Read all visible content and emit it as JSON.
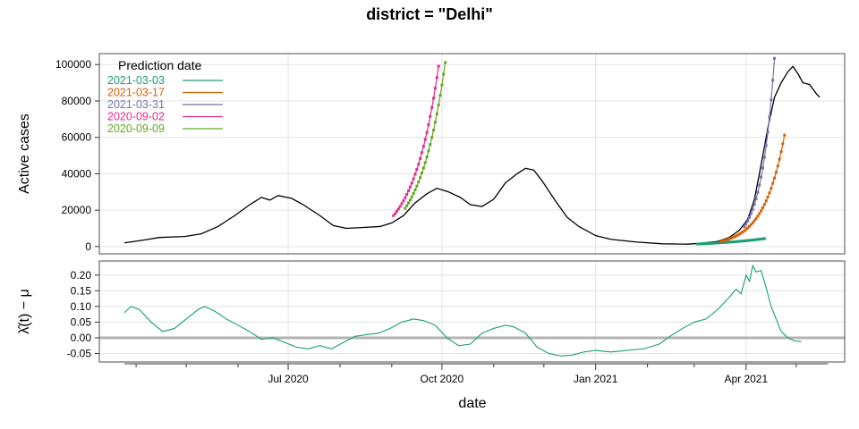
{
  "chart_data": {
    "type": "line",
    "title": "district = \"Delhi\"",
    "xlabel": "date",
    "x_ticks": [
      "Jul 2020",
      "Oct 2020",
      "Jan 2021",
      "Apr 2021"
    ],
    "x_tick_dates": [
      "2020-07-01",
      "2020-10-01",
      "2021-01-01",
      "2021-04-01"
    ],
    "xlim": [
      "2020-03-10",
      "2021-05-30"
    ],
    "grid": true,
    "panels": [
      {
        "name": "active_cases",
        "ylabel": "Active cases",
        "ylim": [
          -4000,
          106000
        ],
        "y_ticks": [
          0,
          20000,
          40000,
          60000,
          80000,
          100000
        ],
        "y_tick_labels": [
          "0",
          "20000",
          "40000",
          "60000",
          "80000",
          "100000"
        ],
        "legend": {
          "title": "Prediction date",
          "placement": "top-left",
          "entries": [
            {
              "label": "2021-03-03",
              "color": "#1b9e77"
            },
            {
              "label": "2021-03-17",
              "color": "#d95f02"
            },
            {
              "label": "2021-03-31",
              "color": "#7570b3"
            },
            {
              "label": "2020-09-02",
              "color": "#e7298a"
            },
            {
              "label": "2020-09-09",
              "color": "#66a61e"
            }
          ]
        },
        "observed": {
          "color": "#000000",
          "points": [
            [
              "2020-03-25",
              2000
            ],
            [
              "2020-04-05",
              3500
            ],
            [
              "2020-04-15",
              5000
            ],
            [
              "2020-04-30",
              5500
            ],
            [
              "2020-05-10",
              7000
            ],
            [
              "2020-05-20",
              11000
            ],
            [
              "2020-05-30",
              17000
            ],
            [
              "2020-06-08",
              23000
            ],
            [
              "2020-06-15",
              27000
            ],
            [
              "2020-06-20",
              25500
            ],
            [
              "2020-06-25",
              28000
            ],
            [
              "2020-07-03",
              26500
            ],
            [
              "2020-07-10",
              23000
            ],
            [
              "2020-07-20",
              17000
            ],
            [
              "2020-07-28",
              11500
            ],
            [
              "2020-08-05",
              10000
            ],
            [
              "2020-08-15",
              10500
            ],
            [
              "2020-08-25",
              11000
            ],
            [
              "2020-09-01",
              13000
            ],
            [
              "2020-09-08",
              17000
            ],
            [
              "2020-09-15",
              24000
            ],
            [
              "2020-09-22",
              29000
            ],
            [
              "2020-09-28",
              32000
            ],
            [
              "2020-10-05",
              30000
            ],
            [
              "2020-10-12",
              27000
            ],
            [
              "2020-10-18",
              23000
            ],
            [
              "2020-10-25",
              22000
            ],
            [
              "2020-11-01",
              26000
            ],
            [
              "2020-11-08",
              35000
            ],
            [
              "2020-11-15",
              40000
            ],
            [
              "2020-11-20",
              43000
            ],
            [
              "2020-11-25",
              42000
            ],
            [
              "2020-11-30",
              36000
            ],
            [
              "2020-12-08",
              25000
            ],
            [
              "2020-12-15",
              16000
            ],
            [
              "2020-12-22",
              11000
            ],
            [
              "2021-01-01",
              6000
            ],
            [
              "2021-01-10",
              4000
            ],
            [
              "2021-01-25",
              2500
            ],
            [
              "2021-02-10",
              1500
            ],
            [
              "2021-02-25",
              1300
            ],
            [
              "2021-03-05",
              1800
            ],
            [
              "2021-03-15",
              2800
            ],
            [
              "2021-03-22",
              5000
            ],
            [
              "2021-03-28",
              9000
            ],
            [
              "2021-04-02",
              15000
            ],
            [
              "2021-04-06",
              26000
            ],
            [
              "2021-04-10",
              45000
            ],
            [
              "2021-04-14",
              65000
            ],
            [
              "2021-04-18",
              82000
            ],
            [
              "2021-04-22",
              90000
            ],
            [
              "2021-04-26",
              96000
            ],
            [
              "2021-04-29",
              99000
            ],
            [
              "2021-05-02",
              95000
            ],
            [
              "2021-05-05",
              90000
            ],
            [
              "2021-05-09",
              89000
            ],
            [
              "2021-05-13",
              84000
            ],
            [
              "2021-05-15",
              82000
            ]
          ]
        },
        "predictions": [
          {
            "label": "2020-09-02",
            "color": "#e7298a",
            "start": "2020-09-02",
            "start_value": 17000,
            "daily_growth": 0.0653,
            "days": 27
          },
          {
            "label": "2020-09-09",
            "color": "#66a61e",
            "start": "2020-09-09",
            "start_value": 21000,
            "daily_growth": 0.0655,
            "days": 24
          },
          {
            "label": "2021-03-03",
            "color": "#1b9e77",
            "start": "2021-03-03",
            "start_value": 1400,
            "daily_growth": 0.0285,
            "days": 40
          },
          {
            "label": "2021-03-17",
            "color": "#d95f02",
            "start": "2021-03-17",
            "start_value": 2800,
            "daily_growth": 0.0812,
            "days": 38
          },
          {
            "label": "2021-03-31",
            "color": "#7570b3",
            "start": "2021-03-31",
            "start_value": 11000,
            "daily_growth": 0.1245,
            "days": 18
          }
        ]
      },
      {
        "name": "lambda_minus_mu",
        "ylabel": "λ̂(t) − μ",
        "ylim": [
          -0.077,
          0.245
        ],
        "y_ticks": [
          -0.05,
          0,
          0.05,
          0.1,
          0.15,
          0.2
        ],
        "y_tick_labels": [
          "-0.05",
          "0.00",
          "0.05",
          "0.10",
          "0.15",
          "0.20"
        ],
        "reference_line": {
          "y": 0,
          "color": "#b3b3b3"
        },
        "series": {
          "color": "#1b9e77",
          "points": [
            [
              "2020-03-25",
              0.08
            ],
            [
              "2020-03-29",
              0.1
            ],
            [
              "2020-04-03",
              0.09
            ],
            [
              "2020-04-10",
              0.05
            ],
            [
              "2020-04-17",
              0.02
            ],
            [
              "2020-04-24",
              0.03
            ],
            [
              "2020-05-01",
              0.06
            ],
            [
              "2020-05-08",
              0.09
            ],
            [
              "2020-05-12",
              0.1
            ],
            [
              "2020-05-18",
              0.085
            ],
            [
              "2020-05-25",
              0.06
            ],
            [
              "2020-06-01",
              0.04
            ],
            [
              "2020-06-08",
              0.02
            ],
            [
              "2020-06-15",
              -0.005
            ],
            [
              "2020-06-22",
              0.0
            ],
            [
              "2020-06-29",
              -0.015
            ],
            [
              "2020-07-06",
              -0.03
            ],
            [
              "2020-07-13",
              -0.035
            ],
            [
              "2020-07-20",
              -0.025
            ],
            [
              "2020-07-27",
              -0.035
            ],
            [
              "2020-08-03",
              -0.015
            ],
            [
              "2020-08-10",
              0.005
            ],
            [
              "2020-08-17",
              0.01
            ],
            [
              "2020-08-24",
              0.015
            ],
            [
              "2020-08-31",
              0.03
            ],
            [
              "2020-09-07",
              0.05
            ],
            [
              "2020-09-14",
              0.06
            ],
            [
              "2020-09-20",
              0.055
            ],
            [
              "2020-09-27",
              0.04
            ],
            [
              "2020-10-04",
              0.0
            ],
            [
              "2020-10-11",
              -0.025
            ],
            [
              "2020-10-18",
              -0.02
            ],
            [
              "2020-10-25",
              0.015
            ],
            [
              "2020-11-01",
              0.03
            ],
            [
              "2020-11-08",
              0.04
            ],
            [
              "2020-11-13",
              0.035
            ],
            [
              "2020-11-20",
              0.015
            ],
            [
              "2020-11-27",
              -0.03
            ],
            [
              "2020-12-04",
              -0.05
            ],
            [
              "2020-12-11",
              -0.058
            ],
            [
              "2020-12-18",
              -0.055
            ],
            [
              "2020-12-25",
              -0.045
            ],
            [
              "2021-01-01",
              -0.04
            ],
            [
              "2021-01-10",
              -0.045
            ],
            [
              "2021-01-20",
              -0.04
            ],
            [
              "2021-01-30",
              -0.035
            ],
            [
              "2021-02-08",
              -0.02
            ],
            [
              "2021-02-16",
              0.01
            ],
            [
              "2021-02-22",
              0.03
            ],
            [
              "2021-03-01",
              0.05
            ],
            [
              "2021-03-08",
              0.06
            ],
            [
              "2021-03-15",
              0.09
            ],
            [
              "2021-03-22",
              0.13
            ],
            [
              "2021-03-26",
              0.155
            ],
            [
              "2021-03-29",
              0.14
            ],
            [
              "2021-04-01",
              0.2
            ],
            [
              "2021-04-03",
              0.18
            ],
            [
              "2021-04-05",
              0.23
            ],
            [
              "2021-04-07",
              0.21
            ],
            [
              "2021-04-10",
              0.215
            ],
            [
              "2021-04-13",
              0.16
            ],
            [
              "2021-04-16",
              0.1
            ],
            [
              "2021-04-19",
              0.06
            ],
            [
              "2021-04-22",
              0.02
            ],
            [
              "2021-04-26",
              0.0
            ],
            [
              "2021-04-30",
              -0.01
            ],
            [
              "2021-05-04",
              -0.012
            ]
          ]
        }
      }
    ]
  }
}
